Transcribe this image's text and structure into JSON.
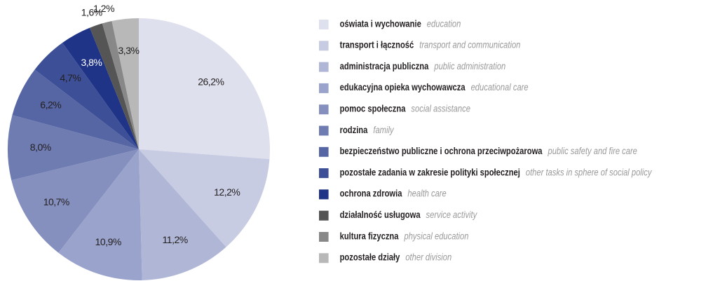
{
  "chart_data": {
    "type": "pie",
    "categories": [
      "oświata i wychowanie",
      "transport i łączność",
      "administracja publiczna",
      "edukacyjna opieka wychowawcza",
      "pomoc społeczna",
      "rodzina",
      "bezpieczeństwo publiczne i ochrona przeciwpożarowa",
      "pozostałe zadania w zakresie polityki społecznej",
      "ochrona zdrowia",
      "działalność usługowa",
      "kultura fizyczna",
      "pozostałe działy"
    ],
    "categories_en": [
      "education",
      "transport and communication",
      "public administration",
      "educational care",
      "social assistance",
      "family",
      "public safety and fire care",
      "other tasks in sphere of social policy",
      "health care",
      "service activity",
      "physical education",
      "other division"
    ],
    "values": [
      26.2,
      12.2,
      11.2,
      10.9,
      10.7,
      8.0,
      6.2,
      4.7,
      3.8,
      1.6,
      1.2,
      3.3
    ],
    "value_labels": [
      "26,2%",
      "12,2%",
      "11,2%",
      "10,9%",
      "10,7%",
      "8,0%",
      "6,2%",
      "4,7%",
      "3,8%",
      "1,6%",
      "1,2%",
      "3,3%"
    ],
    "colors": [
      "#dfe0ee",
      "#c8cce3",
      "#b0b7d6",
      "#9aa3cb",
      "#8590bf",
      "#6f7cb2",
      "#5665a3",
      "#3d4f96",
      "#1f3387",
      "#555555",
      "#888888",
      "#b8b8b8"
    ],
    "legend": "right"
  }
}
